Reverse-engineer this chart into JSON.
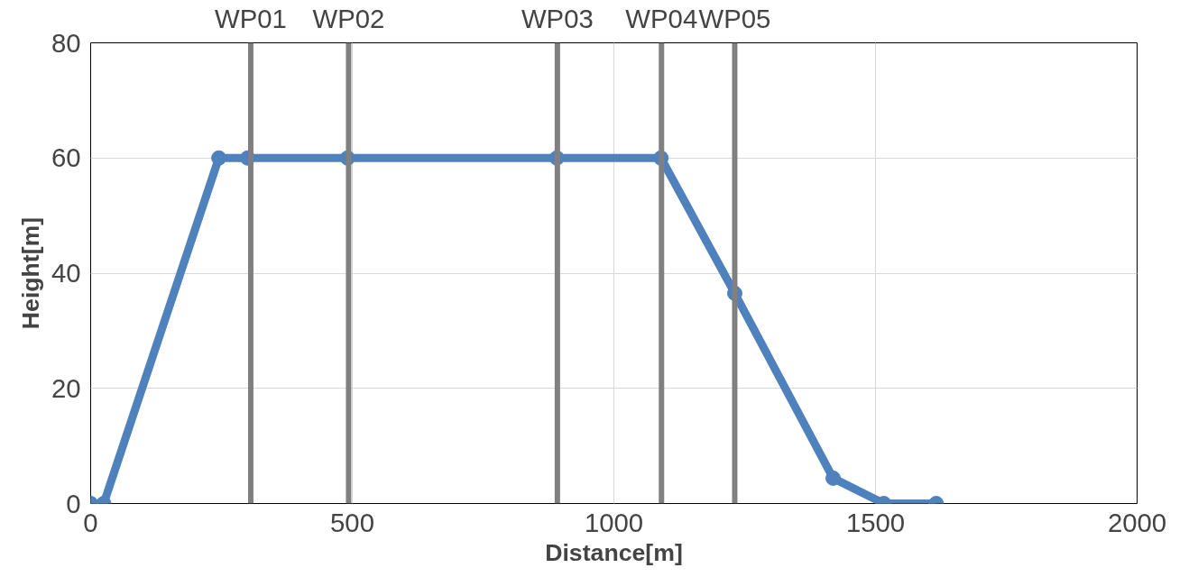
{
  "chart_data": {
    "type": "line",
    "xlabel": "Distance[m]",
    "ylabel": "Height[m]",
    "x": [
      0,
      25,
      245,
      300,
      491,
      891,
      1090,
      1231,
      1419,
      1516,
      1616
    ],
    "series": [
      {
        "color": "#4f81bd",
        "values": [
          0,
          0,
          60,
          60,
          60,
          60,
          60,
          36.5,
          4.4,
          0,
          0
        ]
      }
    ],
    "xlim": [
      0,
      2000
    ],
    "xticks": [
      0,
      500,
      1000,
      1500,
      2000
    ],
    "ylim": [
      0,
      80
    ],
    "yticks": [
      0,
      20,
      40,
      60,
      80
    ],
    "grid": true,
    "marker": "circle",
    "line_style": "solid",
    "ref_lines": [
      {
        "axis": "x",
        "value": 306,
        "label": "WP01",
        "color": "#808080"
      },
      {
        "axis": "x",
        "value": 493,
        "label": "WP02",
        "color": "#808080"
      },
      {
        "axis": "x",
        "value": 892,
        "label": "WP03",
        "color": "#808080"
      },
      {
        "axis": "x",
        "value": 1091,
        "label": "WP04",
        "color": "#808080"
      },
      {
        "axis": "x",
        "value": 1231,
        "label": "WP05",
        "color": "#808080"
      }
    ]
  }
}
